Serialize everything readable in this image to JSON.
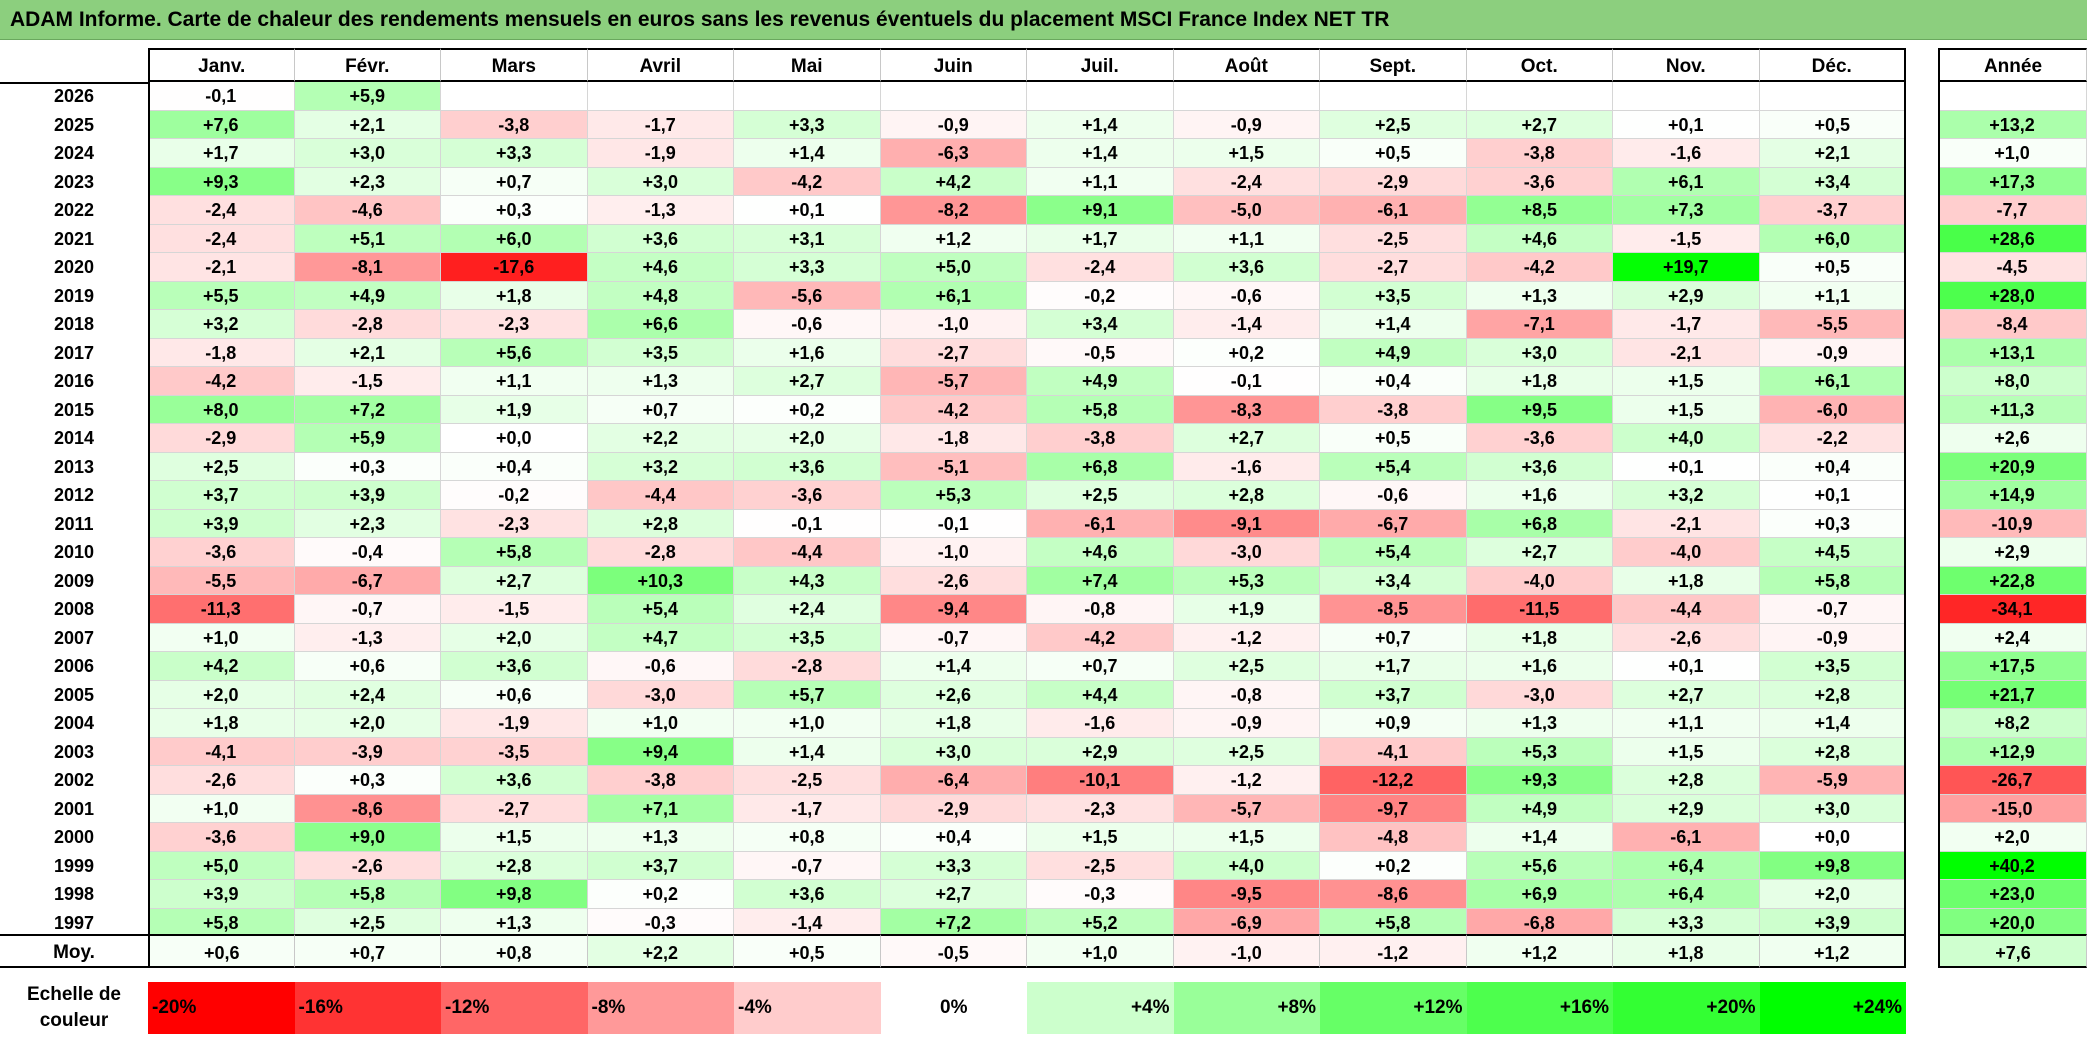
{
  "title": "ADAM Informe. Carte de chaleur des rendements mensuels en euros sans les revenus éventuels du placement MSCI France Index NET TR",
  "chart_data": {
    "type": "heatmap",
    "columns": [
      "Janv.",
      "Févr.",
      "Mars",
      "Avril",
      "Mai",
      "Juin",
      "Juil.",
      "Août",
      "Sept.",
      "Oct.",
      "Nov.",
      "Déc."
    ],
    "year_column": "Année",
    "average_label": "Moy.",
    "rows": [
      {
        "year": "2026",
        "months": [
          "-0,1",
          "+5,9",
          "",
          "",
          "",
          "",
          "",
          "",
          "",
          "",
          "",
          ""
        ],
        "annual": ""
      },
      {
        "year": "2025",
        "months": [
          "+7,6",
          "+2,1",
          "-3,8",
          "-1,7",
          "+3,3",
          "-0,9",
          "+1,4",
          "-0,9",
          "+2,5",
          "+2,7",
          "+0,1",
          "+0,5"
        ],
        "annual": "+13,2"
      },
      {
        "year": "2024",
        "months": [
          "+1,7",
          "+3,0",
          "+3,3",
          "-1,9",
          "+1,4",
          "-6,3",
          "+1,4",
          "+1,5",
          "+0,5",
          "-3,8",
          "-1,6",
          "+2,1"
        ],
        "annual": "+1,0"
      },
      {
        "year": "2023",
        "months": [
          "+9,3",
          "+2,3",
          "+0,7",
          "+3,0",
          "-4,2",
          "+4,2",
          "+1,1",
          "-2,4",
          "-2,9",
          "-3,6",
          "+6,1",
          "+3,4"
        ],
        "annual": "+17,3"
      },
      {
        "year": "2022",
        "months": [
          "-2,4",
          "-4,6",
          "+0,3",
          "-1,3",
          "+0,1",
          "-8,2",
          "+9,1",
          "-5,0",
          "-6,1",
          "+8,5",
          "+7,3",
          "-3,7"
        ],
        "annual": "-7,7"
      },
      {
        "year": "2021",
        "months": [
          "-2,4",
          "+5,1",
          "+6,0",
          "+3,6",
          "+3,1",
          "+1,2",
          "+1,7",
          "+1,1",
          "-2,5",
          "+4,6",
          "-1,5",
          "+6,0"
        ],
        "annual": "+28,6"
      },
      {
        "year": "2020",
        "months": [
          "-2,1",
          "-8,1",
          "-17,6",
          "+4,6",
          "+3,3",
          "+5,0",
          "-2,4",
          "+3,6",
          "-2,7",
          "-4,2",
          "+19,7",
          "+0,5"
        ],
        "annual": "-4,5"
      },
      {
        "year": "2019",
        "months": [
          "+5,5",
          "+4,9",
          "+1,8",
          "+4,8",
          "-5,6",
          "+6,1",
          "-0,2",
          "-0,6",
          "+3,5",
          "+1,3",
          "+2,9",
          "+1,1"
        ],
        "annual": "+28,0"
      },
      {
        "year": "2018",
        "months": [
          "+3,2",
          "-2,8",
          "-2,3",
          "+6,6",
          "-0,6",
          "-1,0",
          "+3,4",
          "-1,4",
          "+1,4",
          "-7,1",
          "-1,7",
          "-5,5"
        ],
        "annual": "-8,4"
      },
      {
        "year": "2017",
        "months": [
          "-1,8",
          "+2,1",
          "+5,6",
          "+3,5",
          "+1,6",
          "-2,7",
          "-0,5",
          "+0,2",
          "+4,9",
          "+3,0",
          "-2,1",
          "-0,9"
        ],
        "annual": "+13,1"
      },
      {
        "year": "2016",
        "months": [
          "-4,2",
          "-1,5",
          "+1,1",
          "+1,3",
          "+2,7",
          "-5,7",
          "+4,9",
          "-0,1",
          "+0,4",
          "+1,8",
          "+1,5",
          "+6,1"
        ],
        "annual": "+8,0"
      },
      {
        "year": "2015",
        "months": [
          "+8,0",
          "+7,2",
          "+1,9",
          "+0,7",
          "+0,2",
          "-4,2",
          "+5,8",
          "-8,3",
          "-3,8",
          "+9,5",
          "+1,5",
          "-6,0"
        ],
        "annual": "+11,3"
      },
      {
        "year": "2014",
        "months": [
          "-2,9",
          "+5,9",
          "+0,0",
          "+2,2",
          "+2,0",
          "-1,8",
          "-3,8",
          "+2,7",
          "+0,5",
          "-3,6",
          "+4,0",
          "-2,2"
        ],
        "annual": "+2,6"
      },
      {
        "year": "2013",
        "months": [
          "+2,5",
          "+0,3",
          "+0,4",
          "+3,2",
          "+3,6",
          "-5,1",
          "+6,8",
          "-1,6",
          "+5,4",
          "+3,6",
          "+0,1",
          "+0,4"
        ],
        "annual": "+20,9"
      },
      {
        "year": "2012",
        "months": [
          "+3,7",
          "+3,9",
          "-0,2",
          "-4,4",
          "-3,6",
          "+5,3",
          "+2,5",
          "+2,8",
          "-0,6",
          "+1,6",
          "+3,2",
          "+0,1"
        ],
        "annual": "+14,9"
      },
      {
        "year": "2011",
        "months": [
          "+3,9",
          "+2,3",
          "-2,3",
          "+2,8",
          "-0,1",
          "-0,1",
          "-6,1",
          "-9,1",
          "-6,7",
          "+6,8",
          "-2,1",
          "+0,3"
        ],
        "annual": "-10,9"
      },
      {
        "year": "2010",
        "months": [
          "-3,6",
          "-0,4",
          "+5,8",
          "-2,8",
          "-4,4",
          "-1,0",
          "+4,6",
          "-3,0",
          "+5,4",
          "+2,7",
          "-4,0",
          "+4,5"
        ],
        "annual": "+2,9"
      },
      {
        "year": "2009",
        "months": [
          "-5,5",
          "-6,7",
          "+2,7",
          "+10,3",
          "+4,3",
          "-2,6",
          "+7,4",
          "+5,3",
          "+3,4",
          "-4,0",
          "+1,8",
          "+5,8"
        ],
        "annual": "+22,8"
      },
      {
        "year": "2008",
        "months": [
          "-11,3",
          "-0,7",
          "-1,5",
          "+5,4",
          "+2,4",
          "-9,4",
          "-0,8",
          "+1,9",
          "-8,5",
          "-11,5",
          "-4,4",
          "-0,7"
        ],
        "annual": "-34,1"
      },
      {
        "year": "2007",
        "months": [
          "+1,0",
          "-1,3",
          "+2,0",
          "+4,7",
          "+3,5",
          "-0,7",
          "-4,2",
          "-1,2",
          "+0,7",
          "+1,8",
          "-2,6",
          "-0,9"
        ],
        "annual": "+2,4"
      },
      {
        "year": "2006",
        "months": [
          "+4,2",
          "+0,6",
          "+3,6",
          "-0,6",
          "-2,8",
          "+1,4",
          "+0,7",
          "+2,5",
          "+1,7",
          "+1,6",
          "+0,1",
          "+3,5"
        ],
        "annual": "+17,5"
      },
      {
        "year": "2005",
        "months": [
          "+2,0",
          "+2,4",
          "+0,6",
          "-3,0",
          "+5,7",
          "+2,6",
          "+4,4",
          "-0,8",
          "+3,7",
          "-3,0",
          "+2,7",
          "+2,8"
        ],
        "annual": "+21,7"
      },
      {
        "year": "2004",
        "months": [
          "+1,8",
          "+2,0",
          "-1,9",
          "+1,0",
          "+1,0",
          "+1,8",
          "-1,6",
          "-0,9",
          "+0,9",
          "+1,3",
          "+1,1",
          "+1,4"
        ],
        "annual": "+8,2"
      },
      {
        "year": "2003",
        "months": [
          "-4,1",
          "-3,9",
          "-3,5",
          "+9,4",
          "+1,4",
          "+3,0",
          "+2,9",
          "+2,5",
          "-4,1",
          "+5,3",
          "+1,5",
          "+2,8"
        ],
        "annual": "+12,9"
      },
      {
        "year": "2002",
        "months": [
          "-2,6",
          "+0,3",
          "+3,6",
          "-3,8",
          "-2,5",
          "-6,4",
          "-10,1",
          "-1,2",
          "-12,2",
          "+9,3",
          "+2,8",
          "-5,9"
        ],
        "annual": "-26,7"
      },
      {
        "year": "2001",
        "months": [
          "+1,0",
          "-8,6",
          "-2,7",
          "+7,1",
          "-1,7",
          "-2,9",
          "-2,3",
          "-5,7",
          "-9,7",
          "+4,9",
          "+2,9",
          "+3,0"
        ],
        "annual": "-15,0"
      },
      {
        "year": "2000",
        "months": [
          "-3,6",
          "+9,0",
          "+1,5",
          "+1,3",
          "+0,8",
          "+0,4",
          "+1,5",
          "+1,5",
          "-4,8",
          "+1,4",
          "-6,1",
          "+0,0"
        ],
        "annual": "+2,0"
      },
      {
        "year": "1999",
        "months": [
          "+5,0",
          "-2,6",
          "+2,8",
          "+3,7",
          "-0,7",
          "+3,3",
          "-2,5",
          "+4,0",
          "+0,2",
          "+5,6",
          "+6,4",
          "+9,8"
        ],
        "annual": "+40,2"
      },
      {
        "year": "1998",
        "months": [
          "+3,9",
          "+5,8",
          "+9,8",
          "+0,2",
          "+3,6",
          "+2,7",
          "-0,3",
          "-9,5",
          "-8,6",
          "+6,9",
          "+6,4",
          "+2,0"
        ],
        "annual": "+23,0"
      },
      {
        "year": "1997",
        "months": [
          "+5,8",
          "+2,5",
          "+1,3",
          "-0,3",
          "-1,4",
          "+7,2",
          "+5,2",
          "-6,9",
          "+5,8",
          "-6,8",
          "+3,3",
          "+3,9"
        ],
        "annual": "+20,0"
      }
    ],
    "averages": {
      "months": [
        "+0,6",
        "+0,7",
        "+0,8",
        "+2,2",
        "+0,5",
        "-0,5",
        "+1,0",
        "-1,0",
        "-1,2",
        "+1,2",
        "+1,8",
        "+1,2"
      ],
      "annual": "+7,6"
    },
    "color_scale": {
      "label": "Echelle de couleur",
      "steps": [
        {
          "label": "-20%",
          "value": -20,
          "color": "#ff0000"
        },
        {
          "label": "-16%",
          "value": -16,
          "color": "#ff3333"
        },
        {
          "label": "-12%",
          "value": -12,
          "color": "#ff6666"
        },
        {
          "label": "-8%",
          "value": -8,
          "color": "#ff9999"
        },
        {
          "label": "-4%",
          "value": -4,
          "color": "#ffcccc"
        },
        {
          "label": "0%",
          "value": 0,
          "color": "#ffffff"
        },
        {
          "label": "+4%",
          "value": 4,
          "color": "#ccffcc"
        },
        {
          "label": "+8%",
          "value": 8,
          "color": "#99ff99"
        },
        {
          "label": "+12%",
          "value": 12,
          "color": "#66ff66"
        },
        {
          "label": "+16%",
          "value": 16,
          "color": "#4dff4d"
        },
        {
          "label": "+20%",
          "value": 20,
          "color": "#33ff33"
        },
        {
          "label": "+24%",
          "value": 24,
          "color": "#00ff00"
        }
      ]
    }
  }
}
